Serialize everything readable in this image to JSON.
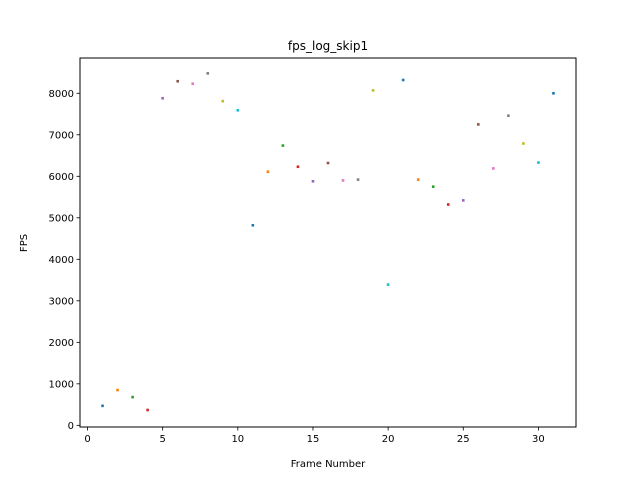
{
  "chart_data": {
    "type": "scatter",
    "title": "fps_log_skip1",
    "xlabel": "Frame Number",
    "ylabel": "FPS",
    "xlim": [
      -0.5,
      32.5
    ],
    "ylim": [
      -40,
      8850
    ],
    "xticks": [
      0,
      5,
      10,
      15,
      20,
      25,
      30
    ],
    "yticks": [
      0,
      1000,
      2000,
      3000,
      4000,
      5000,
      6000,
      7000,
      8000
    ],
    "grid": false,
    "x": [
      1,
      2,
      3,
      4,
      5,
      6,
      7,
      8,
      9,
      10,
      11,
      12,
      13,
      14,
      15,
      16,
      17,
      18,
      19,
      20,
      21,
      22,
      23,
      24,
      25,
      26,
      27,
      28,
      29,
      30,
      31
    ],
    "y": [
      470,
      850,
      680,
      370,
      7880,
      8290,
      8230,
      8480,
      7810,
      7590,
      4820,
      6110,
      6740,
      6230,
      5880,
      6320,
      5900,
      5920,
      8070,
      3390,
      8320,
      5920,
      5750,
      5320,
      5420,
      7250,
      6190,
      7460,
      6790,
      6330,
      8000
    ],
    "colors": [
      "#1f77b4",
      "#ff7f0e",
      "#2ca02c",
      "#d62728",
      "#9467bd",
      "#8c564b",
      "#e377c2",
      "#7f7f7f",
      "#bcbd22",
      "#17becf"
    ]
  }
}
